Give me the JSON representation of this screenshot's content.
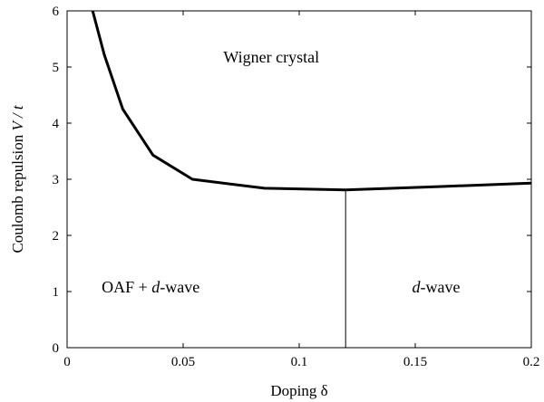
{
  "chart_data": {
    "type": "line",
    "title": "",
    "xlabel": "Doping δ",
    "ylabel_main": "Coulomb repulsion ",
    "ylabel_var": "V / t",
    "xlim": [
      0,
      0.2
    ],
    "ylim": [
      0,
      6
    ],
    "xticks": [
      0,
      0.05,
      0.1,
      0.15,
      0.2
    ],
    "xtick_labels": [
      "0",
      "0.05",
      "0.1",
      "0.15",
      "0.2"
    ],
    "yticks": [
      0,
      1,
      2,
      3,
      4,
      5,
      6
    ],
    "ytick_labels": [
      "0",
      "1",
      "2",
      "3",
      "4",
      "5",
      "6"
    ],
    "grid": false,
    "series": [
      {
        "x": [
          0.011,
          0.016,
          0.024,
          0.037,
          0.054,
          0.085,
          0.12,
          0.16,
          0.2
        ],
        "y": [
          6.0,
          5.22,
          4.25,
          3.43,
          3.0,
          2.84,
          2.81,
          2.87,
          2.93
        ]
      }
    ],
    "boundary_line": {
      "x": 0.12,
      "y_from": 0,
      "y_to": 2.81
    },
    "region_labels": [
      {
        "id": "wigner",
        "x": 0.088,
        "y": 5.08,
        "parts": [
          {
            "text": "Wigner crystal",
            "italic": false
          }
        ]
      },
      {
        "id": "oaf",
        "x": 0.036,
        "y": 0.98,
        "parts": [
          {
            "text": "OAF + ",
            "italic": false
          },
          {
            "text": "d",
            "italic": true
          },
          {
            "text": "-wave",
            "italic": false
          }
        ]
      },
      {
        "id": "dwave",
        "x": 0.159,
        "y": 0.98,
        "parts": [
          {
            "text": "d",
            "italic": true
          },
          {
            "text": "-wave",
            "italic": false
          }
        ]
      }
    ]
  }
}
